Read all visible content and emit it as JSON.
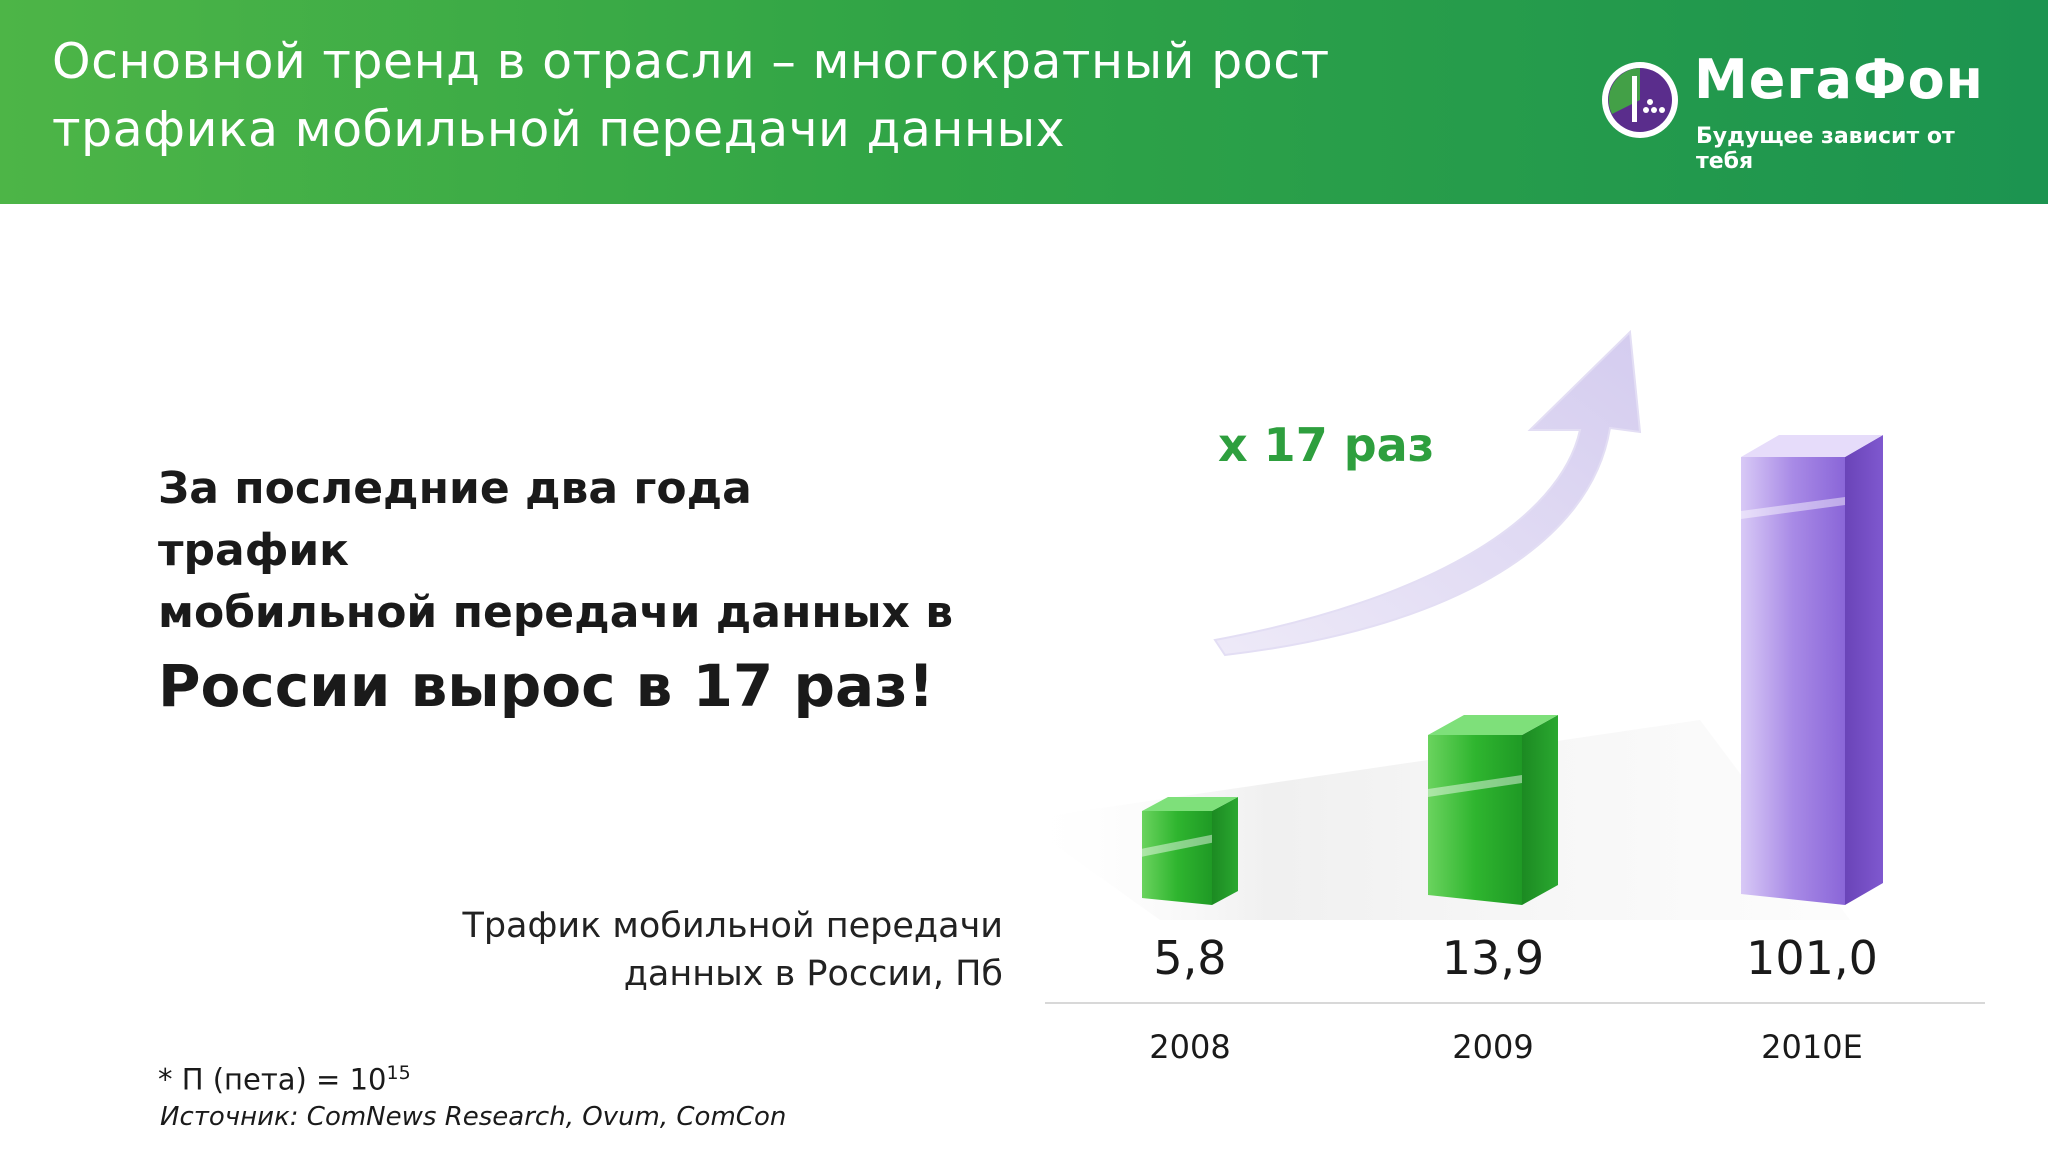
{
  "header": {
    "title_line1": "Основной тренд в отрасли – многократный рост",
    "title_line2": "трафика мобильной передачи данных"
  },
  "logo": {
    "name": "МегаФон",
    "tagline": "Будущее зависит от тебя"
  },
  "lead": {
    "line1": "За последние два года трафик",
    "line2": "мобильной передачи данных в",
    "line3": "России вырос в 17 раз!"
  },
  "multiplier": "x 17 раз",
  "chart_label": {
    "line1": "Трафик мобильной передачи",
    "line2": "данных в России, Пб"
  },
  "footnote": {
    "text": "* П (пета) = 10",
    "exponent": "15"
  },
  "source": "Источник: ComNews Research, Ovum, ComCon",
  "colors": {
    "header_green": "#30a446",
    "bar_green": "#2fb52f",
    "bar_purple": "#8a5fd8",
    "accent_text_green": "#2e9f3e"
  },
  "chart_data": {
    "type": "bar",
    "categories": [
      "2008",
      "2009",
      "2010E"
    ],
    "values": [
      5.8,
      13.9,
      101.0
    ],
    "value_labels": [
      "5,8",
      "13,9",
      "101,0"
    ],
    "bar_colors": [
      "green",
      "green",
      "purple"
    ],
    "ylabel": "Трафик мобильной передачи данных в России, Пб",
    "annotation": "x 17 раз",
    "scale": "non-linear (visual emphasis)"
  }
}
